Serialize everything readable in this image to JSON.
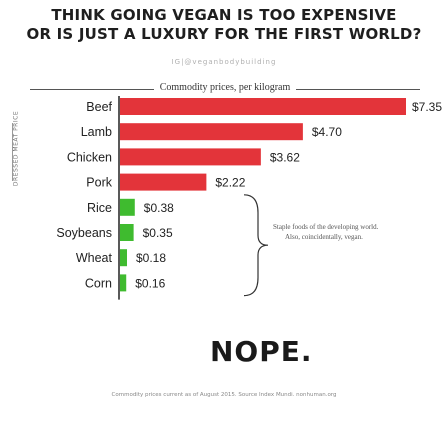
{
  "headline": {
    "line1": "THINK GOING VEGAN IS TOO EXPENSIVE",
    "line2": "OR IS JUST A LUXURY FOR THE FIRST WORLD?"
  },
  "handle": "IG|@veganbodybuilding",
  "vertical_label": "DRESSED MEAT PRICE",
  "brace_note": {
    "line1": "Staple foods of the developing world.",
    "line2": "Also, coincidentally, vegan."
  },
  "verdict": "NOPE.",
  "footnote": "Commodity prices current as of August 2015. Source Index Mundi. nonhuman.org",
  "colors": {
    "meat": "#e3343a",
    "plant": "#3fbb2f"
  },
  "chart_data": {
    "type": "bar",
    "orientation": "horizontal",
    "title": "Commodity prices, per kilogram",
    "categories": [
      "Beef",
      "Lamb",
      "Chicken",
      "Pork",
      "Rice",
      "Soybeans",
      "Wheat",
      "Corn"
    ],
    "values": [
      7.35,
      4.7,
      3.62,
      2.22,
      0.38,
      0.35,
      0.18,
      0.16
    ],
    "value_labels": [
      "$7.35",
      "$4.70",
      "$3.62",
      "$2.22",
      "$0.38",
      "$0.35",
      "$0.18",
      "$0.16"
    ],
    "groups": [
      "meat",
      "meat",
      "meat",
      "meat",
      "plant",
      "plant",
      "plant",
      "plant"
    ],
    "xlim": [
      0,
      7.35
    ],
    "grid": false
  }
}
